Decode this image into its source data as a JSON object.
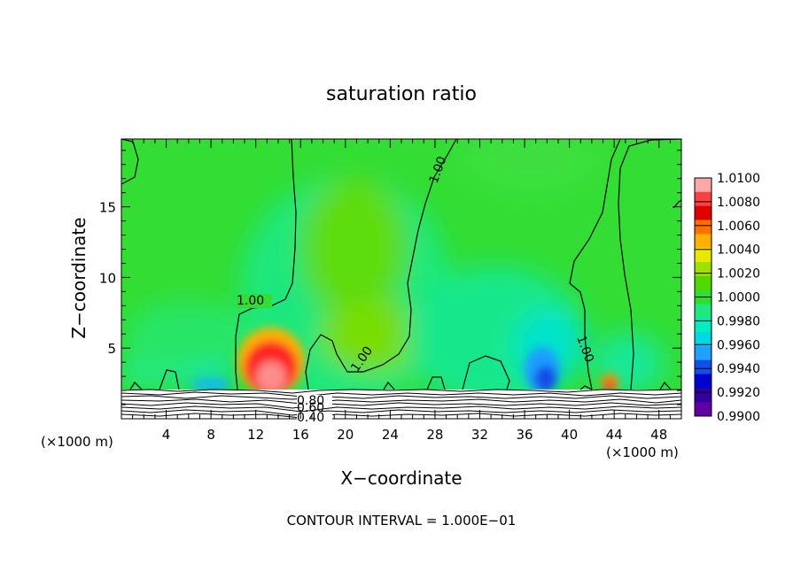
{
  "chart_data": {
    "type": "heatmap",
    "title": "saturation ratio",
    "xlabel": "X−coordinate",
    "ylabel": "Z−coordinate",
    "x_unit_left": "(×1000 m)",
    "x_unit_right": "(×1000 m)",
    "footer": "CONTOUR INTERVAL = 1.000E−01",
    "xlim": [
      0,
      50
    ],
    "ylim": [
      0,
      19.8
    ],
    "x_ticks": [
      4,
      8,
      12,
      16,
      20,
      24,
      28,
      32,
      36,
      40,
      44,
      48
    ],
    "y_ticks": [
      5,
      10,
      15
    ],
    "colorbar": {
      "min": 0.99,
      "max": 1.01,
      "labels": [
        "1.0100",
        "1.0080",
        "1.0060",
        "1.0040",
        "1.0020",
        "1.0000",
        "0.9980",
        "0.9960",
        "0.9940",
        "0.9920",
        "0.9900"
      ],
      "colors": [
        "#ffa8a8",
        "#ff4040",
        "#e00000",
        "#ff7000",
        "#ffb000",
        "#e8e800",
        "#a0e000",
        "#50d800",
        "#30dd30",
        "#20e880",
        "#00eec0",
        "#00d8e8",
        "#20a0ff",
        "#1050e8",
        "#0000d0",
        "#3000a0",
        "#6000a0"
      ]
    },
    "contour_labels": [
      {
        "text": "1.00",
        "x": 11.4,
        "z": 8.4
      },
      {
        "text": "1.00",
        "x": 29.0,
        "z": 17.3
      },
      {
        "text": "1.00",
        "x": 21.6,
        "z": 4.6
      },
      {
        "text": "1.00",
        "x": 41.5,
        "z": 5.0
      },
      {
        "text": "0.80",
        "x": 17.4,
        "z": 1.25
      },
      {
        "text": "0.60",
        "x": 17.4,
        "z": 0.75
      },
      {
        "text": "0.40",
        "x": 17.4,
        "z": 0.15
      }
    ],
    "features": [
      {
        "kind": "max",
        "x": 13.2,
        "z": 3.3,
        "value": 1.009
      },
      {
        "kind": "max",
        "x": 43.4,
        "z": 2.3,
        "value": 1.006
      },
      {
        "kind": "min",
        "x": 37.8,
        "z": 2.9,
        "value": 0.994
      },
      {
        "kind": "min",
        "x": 8.0,
        "z": 2.3,
        "value": 0.997
      }
    ]
  }
}
